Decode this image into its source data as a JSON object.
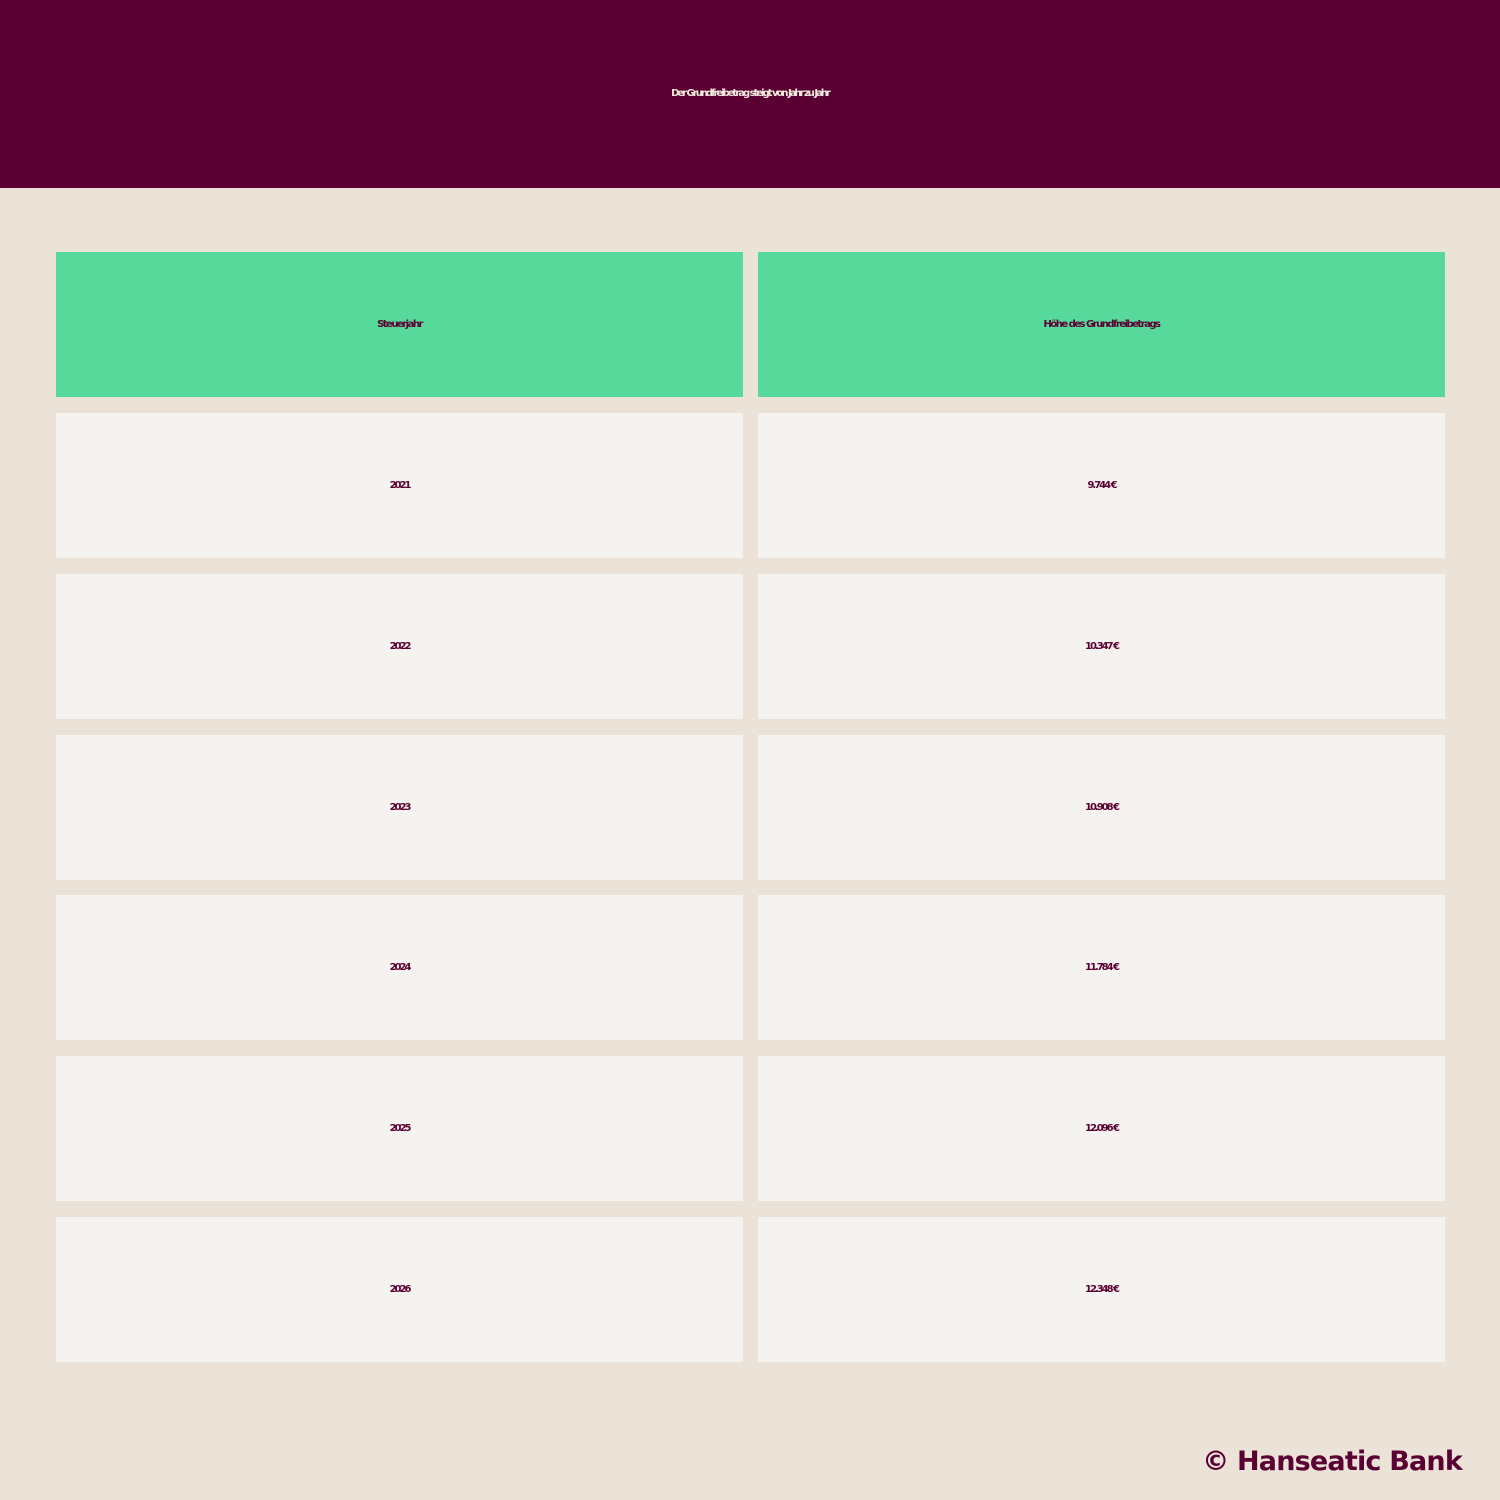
{
  "title": "Der Grundfreibetrag steigt von Jahr zu Jahr",
  "copyright": "© Hanseatic Bank",
  "colors": {
    "header_background": "#5a0032",
    "title_text": "#f2e9dc",
    "page_background": "#ebe3d8",
    "table_header_background": "#58d99c",
    "table_cell_background": "#f5f3ef",
    "text": "#5a0032"
  },
  "chart_data": {
    "type": "table",
    "title": "Der Grundfreibetrag steigt von Jahr zu Jahr",
    "columns": [
      "Steuerjahr",
      "Höhe des Grundfreibetrags"
    ],
    "rows": [
      [
        "2021",
        "9.744 €"
      ],
      [
        "2022",
        "10.347 €"
      ],
      [
        "2023",
        "10.908 €"
      ],
      [
        "2024",
        "11.784 €"
      ],
      [
        "2025",
        "12.096 €"
      ],
      [
        "2026",
        "12.348 €"
      ]
    ]
  }
}
